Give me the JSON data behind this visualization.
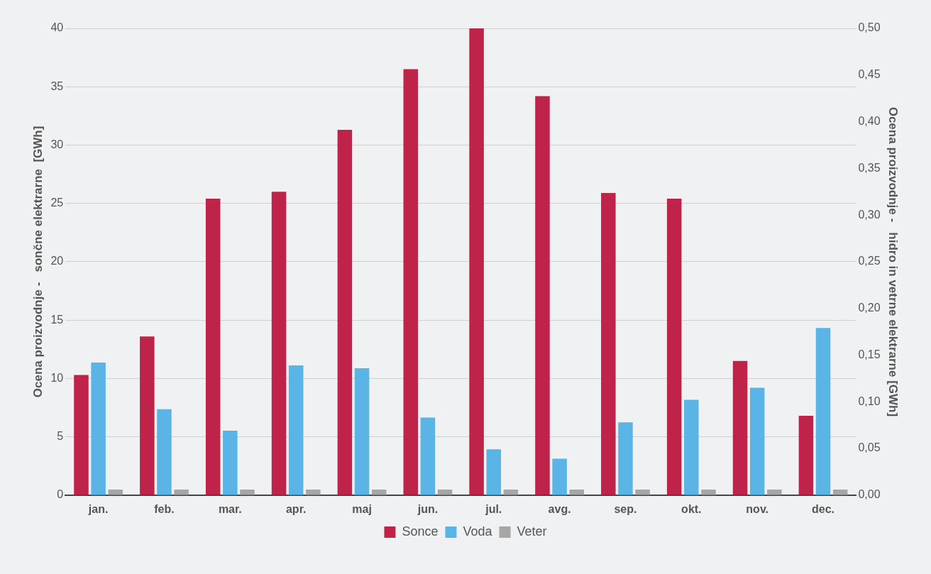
{
  "chart_data": {
    "type": "bar",
    "categories": [
      "jan.",
      "feb.",
      "mar.",
      "apr.",
      "maj",
      "jun.",
      "jul.",
      "avg.",
      "sep.",
      "okt.",
      "nov.",
      "dec."
    ],
    "series": [
      {
        "name": "Sonce",
        "color": "#c0234a",
        "values": [
          10.3,
          13.6,
          25.4,
          26.0,
          31.3,
          36.5,
          40.0,
          34.2,
          25.9,
          25.4,
          11.5,
          6.8
        ]
      },
      {
        "name": "Voda",
        "color": "#5ab4e5",
        "axis": "y2",
        "values": [
          0.142,
          0.092,
          0.069,
          0.139,
          0.136,
          0.083,
          0.049,
          0.039,
          0.078,
          0.102,
          0.115,
          0.179
        ]
      },
      {
        "name": "Veter",
        "color": "#a6a6a6",
        "axis": "y2",
        "values": [
          0.006,
          0.006,
          0.006,
          0.006,
          0.006,
          0.006,
          0.006,
          0.006,
          0.006,
          0.006,
          0.006,
          0.006
        ]
      }
    ],
    "ylabel": "Ocena proizvodnje -   sončne elektrarne  [GWh]",
    "y2label": "Ocena proizvodnje -   hidro in vetrne elektrarne [GWh]",
    "ylim": [
      0,
      40
    ],
    "yticks": [
      0,
      5,
      10,
      15,
      20,
      25,
      30,
      35,
      40
    ],
    "y2lim": [
      0,
      0.5
    ],
    "y2ticks": [
      {
        "value": 0,
        "label": "0,00"
      },
      {
        "value": 0.05,
        "label": "0,05"
      },
      {
        "value": 0.1,
        "label": "0,10"
      },
      {
        "value": 0.15,
        "label": "0,15"
      },
      {
        "value": 0.2,
        "label": "0,20"
      },
      {
        "value": 0.25,
        "label": "0,25"
      },
      {
        "value": 0.3,
        "label": "0,30"
      },
      {
        "value": 0.35,
        "label": "0,35"
      },
      {
        "value": 0.4,
        "label": "0,40"
      },
      {
        "value": 0.45,
        "label": "0,45"
      },
      {
        "value": 0.5,
        "label": "0,50"
      }
    ],
    "grid": "y",
    "legend": "bottom"
  }
}
